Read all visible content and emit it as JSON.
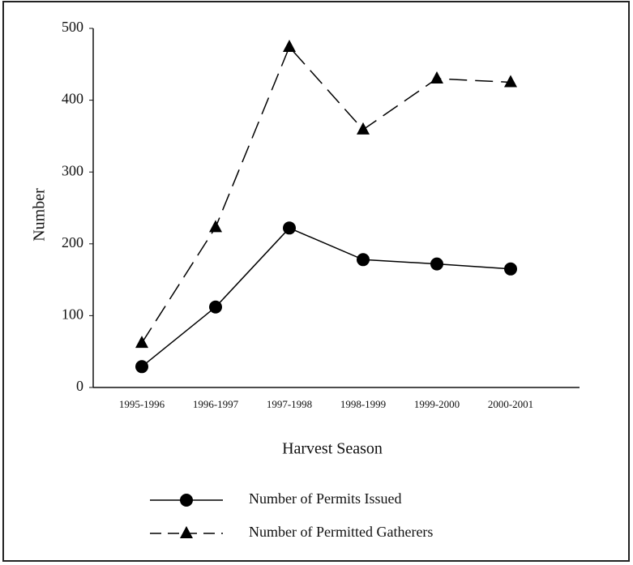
{
  "chart_data": {
    "type": "line",
    "xlabel": "Harvest Season",
    "ylabel": "Number",
    "categories": [
      "1995-1996",
      "1996-1997",
      "1997-1998",
      "1998-1999",
      "1999-2000",
      "2000-2001"
    ],
    "series": [
      {
        "name": "Number of Permits Issued",
        "color": "#000000",
        "marker": "circle",
        "dashed": false,
        "values": [
          29,
          112,
          222,
          178,
          172,
          165
        ]
      },
      {
        "name": "Number of Permitted Gatherers",
        "color": "#000000",
        "marker": "triangle",
        "dashed": true,
        "values": [
          62,
          223,
          474,
          359,
          430,
          425
        ]
      }
    ],
    "ylim": [
      0,
      500
    ],
    "yticks": [
      0,
      100,
      200,
      300,
      400,
      500
    ],
    "grid": false,
    "legend": "bottom"
  }
}
